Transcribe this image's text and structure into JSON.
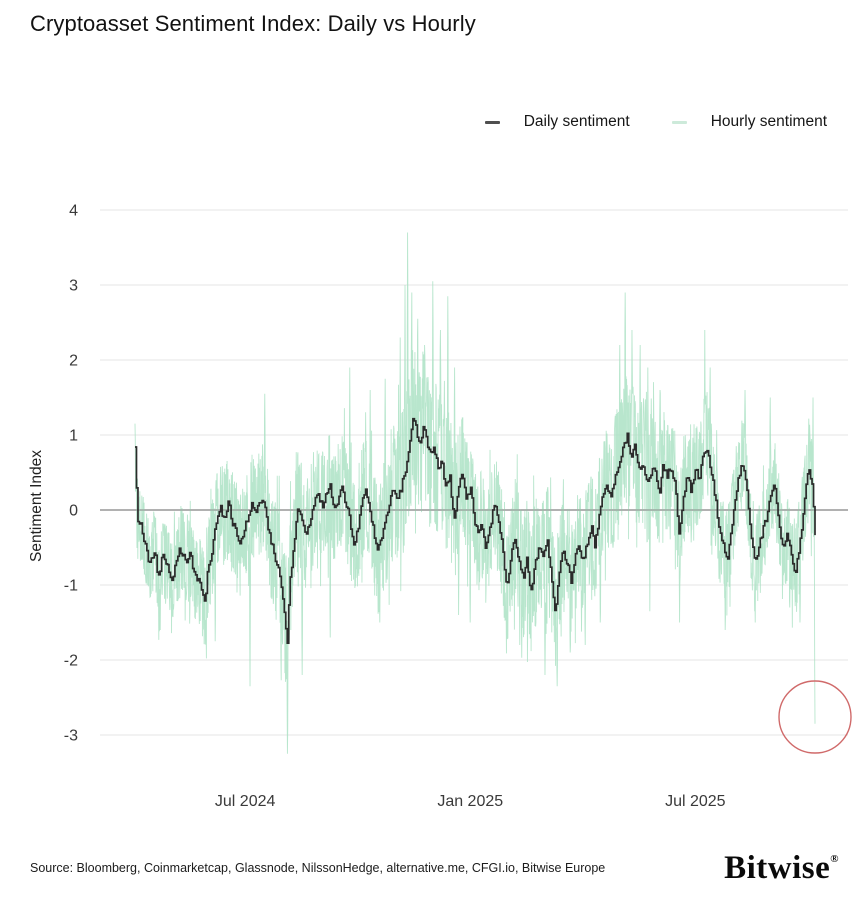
{
  "page": {
    "title": "Cryptoasset Sentiment Index: Daily vs Hourly"
  },
  "legend": {
    "items": [
      {
        "label": "Daily sentiment",
        "color": "#4f4f4f"
      },
      {
        "label": "Hourly sentiment",
        "color": "#cdeada"
      }
    ]
  },
  "footer": {
    "source": "Source: Bloomberg, Coinmarketcap, Glassnode, NilssonHedge, alternative.me, CFGI.io, Bitwise Europe",
    "brand": "Bitwise",
    "brand_registered": "®"
  },
  "chart_data": {
    "type": "line",
    "title": "Cryptoasset Sentiment Index: Daily vs Hourly",
    "xlabel": "",
    "ylabel": "Sentiment Index",
    "ylim": [
      -3.45,
      4.2
    ],
    "yticks": [
      4,
      3,
      2,
      1,
      0,
      -1,
      -2,
      -3
    ],
    "xticks": [
      {
        "label": "Jul 2024",
        "t": 0.162
      },
      {
        "label": "Jan 2025",
        "t": 0.493
      },
      {
        "label": "Jul 2025",
        "t": 0.824
      }
    ],
    "grid": true,
    "legend_position": "top-right",
    "colors": {
      "grid": "#e4e4e4",
      "zero_line": "#8f8f8f",
      "daily": "#2b2b2b",
      "hourly": "#abe2c4",
      "annotation": "#d06a6a",
      "tick_text": "#3a3a3a"
    },
    "series": [
      {
        "name": "Daily sentiment",
        "style": "step",
        "color": "#2b2b2b",
        "anchors": [
          [
            0,
            0.84
          ],
          [
            0.004,
            -0.2
          ],
          [
            0.007,
            -0.15
          ],
          [
            0.015,
            -0.45
          ],
          [
            0.022,
            -0.75
          ],
          [
            0.029,
            -0.5
          ],
          [
            0.034,
            -0.95
          ],
          [
            0.04,
            -0.6
          ],
          [
            0.047,
            -0.75
          ],
          [
            0.054,
            -0.95
          ],
          [
            0.06,
            -0.7
          ],
          [
            0.066,
            -0.5
          ],
          [
            0.074,
            -0.7
          ],
          [
            0.081,
            -0.6
          ],
          [
            0.088,
            -0.85
          ],
          [
            0.096,
            -1
          ],
          [
            0.103,
            -1.2
          ],
          [
            0.107,
            -0.8
          ],
          [
            0.113,
            -0.55
          ],
          [
            0.119,
            -0.2
          ],
          [
            0.125,
            0.05
          ],
          [
            0.131,
            -0.1
          ],
          [
            0.137,
            0.1
          ],
          [
            0.143,
            -0.15
          ],
          [
            0.149,
            -0.3
          ],
          [
            0.154,
            -0.5
          ],
          [
            0.16,
            -0.3
          ],
          [
            0.166,
            -0.1
          ],
          [
            0.172,
            0.1
          ],
          [
            0.178,
            -0.05
          ],
          [
            0.184,
            0.15
          ],
          [
            0.19,
            0.05
          ],
          [
            0.196,
            -0.25
          ],
          [
            0.201,
            -0.45
          ],
          [
            0.207,
            -0.7
          ],
          [
            0.213,
            -0.85
          ],
          [
            0.219,
            -1.3
          ],
          [
            0.224,
            -1.75
          ],
          [
            0.228,
            -0.9
          ],
          [
            0.234,
            -0.45
          ],
          [
            0.24,
            0.05
          ],
          [
            0.246,
            -0.15
          ],
          [
            0.251,
            -0.35
          ],
          [
            0.257,
            -0.15
          ],
          [
            0.263,
            0.1
          ],
          [
            0.269,
            0.25
          ],
          [
            0.275,
            0.05
          ],
          [
            0.281,
            0.2
          ],
          [
            0.287,
            0.3
          ],
          [
            0.293,
            0
          ],
          [
            0.299,
            0.15
          ],
          [
            0.304,
            0.3
          ],
          [
            0.31,
            0.1
          ],
          [
            0.316,
            -0.15
          ],
          [
            0.322,
            -0.45
          ],
          [
            0.328,
            -0.25
          ],
          [
            0.334,
            0.1
          ],
          [
            0.34,
            0.25
          ],
          [
            0.346,
            0
          ],
          [
            0.351,
            -0.3
          ],
          [
            0.357,
            -0.55
          ],
          [
            0.363,
            -0.35
          ],
          [
            0.369,
            -0.1
          ],
          [
            0.375,
            0.15
          ],
          [
            0.381,
            0.3
          ],
          [
            0.387,
            0.15
          ],
          [
            0.393,
            0.35
          ],
          [
            0.399,
            0.6
          ],
          [
            0.404,
            0.9
          ],
          [
            0.41,
            1.25
          ],
          [
            0.415,
            1
          ],
          [
            0.419,
            0.85
          ],
          [
            0.424,
            1.15
          ],
          [
            0.428,
            0.95
          ],
          [
            0.434,
            0.75
          ],
          [
            0.44,
            0.85
          ],
          [
            0.446,
            0.55
          ],
          [
            0.451,
            0.65
          ],
          [
            0.457,
            0.3
          ],
          [
            0.463,
            0.45
          ],
          [
            0.469,
            -0.2
          ],
          [
            0.475,
            0.3
          ],
          [
            0.481,
            0.5
          ],
          [
            0.487,
            0.15
          ],
          [
            0.493,
            0.3
          ],
          [
            0.499,
            -0.1
          ],
          [
            0.504,
            -0.35
          ],
          [
            0.51,
            -0.15
          ],
          [
            0.516,
            -0.55
          ],
          [
            0.522,
            -0.25
          ],
          [
            0.528,
            0.1
          ],
          [
            0.534,
            -0.15
          ],
          [
            0.54,
            -0.45
          ],
          [
            0.547,
            -1.05
          ],
          [
            0.553,
            -0.6
          ],
          [
            0.559,
            -0.35
          ],
          [
            0.565,
            -0.7
          ],
          [
            0.571,
            -0.9
          ],
          [
            0.576,
            -0.6
          ],
          [
            0.582,
            -1.15
          ],
          [
            0.588,
            -0.75
          ],
          [
            0.594,
            -0.5
          ],
          [
            0.6,
            -0.65
          ],
          [
            0.606,
            -0.4
          ],
          [
            0.612,
            -0.9
          ],
          [
            0.618,
            -1.35
          ],
          [
            0.624,
            -0.85
          ],
          [
            0.629,
            -0.55
          ],
          [
            0.635,
            -0.7
          ],
          [
            0.641,
            -0.95
          ],
          [
            0.647,
            -0.65
          ],
          [
            0.653,
            -0.45
          ],
          [
            0.659,
            -0.7
          ],
          [
            0.665,
            -0.45
          ],
          [
            0.671,
            -0.2
          ],
          [
            0.676,
            -0.5
          ],
          [
            0.682,
            -0.1
          ],
          [
            0.688,
            0.2
          ],
          [
            0.694,
            0.35
          ],
          [
            0.7,
            0.15
          ],
          [
            0.706,
            0.45
          ],
          [
            0.712,
            0.6
          ],
          [
            0.718,
            0.85
          ],
          [
            0.724,
            1
          ],
          [
            0.729,
            0.7
          ],
          [
            0.735,
            0.85
          ],
          [
            0.741,
            0.55
          ],
          [
            0.747,
            0.65
          ],
          [
            0.753,
            0.35
          ],
          [
            0.759,
            0.5
          ],
          [
            0.765,
            0.55
          ],
          [
            0.771,
            0.2
          ],
          [
            0.776,
            0.65
          ],
          [
            0.782,
            0.45
          ],
          [
            0.788,
            0.55
          ],
          [
            0.794,
            0.35
          ],
          [
            0.8,
            -0.3
          ],
          [
            0.806,
            0.15
          ],
          [
            0.812,
            0.45
          ],
          [
            0.818,
            0.25
          ],
          [
            0.824,
            0.55
          ],
          [
            0.829,
            0.4
          ],
          [
            0.835,
            0.7
          ],
          [
            0.841,
            0.85
          ],
          [
            0.847,
            0.5
          ],
          [
            0.853,
            0.2
          ],
          [
            0.859,
            -0.25
          ],
          [
            0.865,
            -0.45
          ],
          [
            0.871,
            -0.65
          ],
          [
            0.876,
            -0.35
          ],
          [
            0.882,
            0.1
          ],
          [
            0.888,
            0.45
          ],
          [
            0.894,
            0.65
          ],
          [
            0.9,
            0.3
          ],
          [
            0.906,
            -0.4
          ],
          [
            0.912,
            -0.7
          ],
          [
            0.918,
            -0.45
          ],
          [
            0.924,
            -0.25
          ],
          [
            0.929,
            -0.1
          ],
          [
            0.935,
            0.2
          ],
          [
            0.941,
            0.35
          ],
          [
            0.947,
            -0.2
          ],
          [
            0.953,
            -0.5
          ],
          [
            0.959,
            -0.35
          ],
          [
            0.965,
            -0.6
          ],
          [
            0.971,
            -0.85
          ],
          [
            0.976,
            -0.55
          ],
          [
            0.982,
            -0.1
          ],
          [
            0.987,
            0.35
          ],
          [
            0.991,
            0.55
          ],
          [
            0.996,
            0.3
          ],
          [
            1,
            -0.35
          ]
        ]
      },
      {
        "name": "Hourly sentiment",
        "style": "noisy",
        "color": "#abe2c4",
        "amplitude_anchors": [
          [
            0,
            0.5
          ],
          [
            0.08,
            0.6
          ],
          [
            0.12,
            0.65
          ],
          [
            0.18,
            0.7
          ],
          [
            0.22,
            0.85
          ],
          [
            0.26,
            0.7
          ],
          [
            0.3,
            0.75
          ],
          [
            0.34,
            0.8
          ],
          [
            0.38,
            0.95
          ],
          [
            0.42,
            1.05
          ],
          [
            0.46,
            0.95
          ],
          [
            0.5,
            0.7
          ],
          [
            0.54,
            0.75
          ],
          [
            0.58,
            0.85
          ],
          [
            0.62,
            0.8
          ],
          [
            0.66,
            0.7
          ],
          [
            0.7,
            0.8
          ],
          [
            0.73,
            0.9
          ],
          [
            0.76,
            0.8
          ],
          [
            0.8,
            0.7
          ],
          [
            0.84,
            0.75
          ],
          [
            0.87,
            0.65
          ],
          [
            0.9,
            0.6
          ],
          [
            0.93,
            0.55
          ],
          [
            0.96,
            0.6
          ],
          [
            1,
            0.7
          ]
        ],
        "spikes": [
          [
            0.037,
            -1.6
          ],
          [
            0.118,
            -1.75
          ],
          [
            0.169,
            -2.35
          ],
          [
            0.191,
            1.55
          ],
          [
            0.224,
            -3.25
          ],
          [
            0.246,
            -2.2
          ],
          [
            0.287,
            -1.7
          ],
          [
            0.316,
            1.9
          ],
          [
            0.346,
            1.6
          ],
          [
            0.36,
            -1.5
          ],
          [
            0.368,
            1.75
          ],
          [
            0.39,
            2.3
          ],
          [
            0.397,
            3
          ],
          [
            0.401,
            3.7
          ],
          [
            0.407,
            2.9
          ],
          [
            0.416,
            2.55
          ],
          [
            0.426,
            2.2
          ],
          [
            0.438,
            3.05
          ],
          [
            0.449,
            2.4
          ],
          [
            0.46,
            2.85
          ],
          [
            0.47,
            1.9
          ],
          [
            0.476,
            -1.4
          ],
          [
            0.493,
            -1.5
          ],
          [
            0.566,
            -1.8
          ],
          [
            0.603,
            -2.2
          ],
          [
            0.621,
            -2.35
          ],
          [
            0.64,
            -1.9
          ],
          [
            0.662,
            -1.8
          ],
          [
            0.684,
            -1.5
          ],
          [
            0.713,
            2.2
          ],
          [
            0.721,
            2.9
          ],
          [
            0.731,
            2.4
          ],
          [
            0.743,
            2.2
          ],
          [
            0.754,
            1.9
          ],
          [
            0.757,
            -1.35
          ],
          [
            0.772,
            1.6
          ],
          [
            0.801,
            -1.5
          ],
          [
            0.838,
            2.4
          ],
          [
            0.846,
            1.9
          ],
          [
            0.868,
            -1.6
          ],
          [
            0.897,
            1.6
          ],
          [
            0.912,
            -1.5
          ],
          [
            0.934,
            1.5
          ],
          [
            0.963,
            -1.3
          ],
          [
            0.978,
            -1.5
          ],
          [
            0.997,
            1.5
          ],
          [
            1,
            -2.85
          ]
        ]
      }
    ],
    "annotation_circle": {
      "t": 1.0,
      "value": -2.76,
      "color": "#d06a6a"
    }
  }
}
